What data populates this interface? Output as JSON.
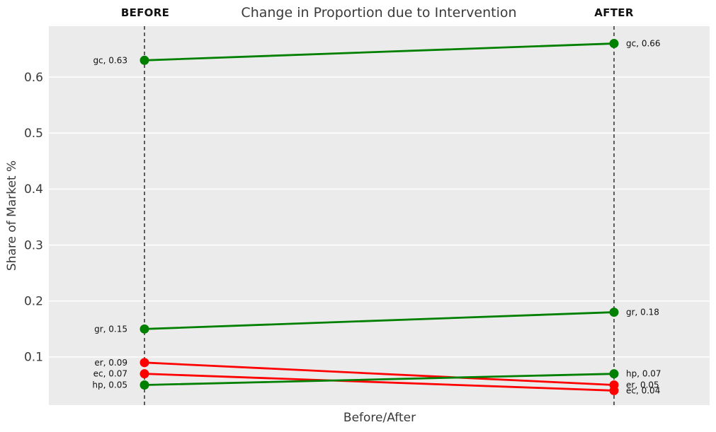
{
  "chart_data": {
    "type": "line",
    "subtype": "slope",
    "title": "Change in Proportion due to Intervention",
    "xlabel": "Before/After",
    "ylabel": "Share of Market %",
    "categories": [
      "BEFORE",
      "AFTER"
    ],
    "series": [
      {
        "name": "gc",
        "values": [
          0.63,
          0.66
        ],
        "trend": "increase",
        "color": "#008000"
      },
      {
        "name": "gr",
        "values": [
          0.15,
          0.18
        ],
        "trend": "increase",
        "color": "#008000"
      },
      {
        "name": "er",
        "values": [
          0.09,
          0.05
        ],
        "trend": "decrease",
        "color": "#ff0000"
      },
      {
        "name": "ec",
        "values": [
          0.07,
          0.04
        ],
        "trend": "decrease",
        "color": "#ff0000"
      },
      {
        "name": "hp",
        "values": [
          0.05,
          0.07
        ],
        "trend": "increase",
        "color": "#008000"
      }
    ],
    "yticks": [
      0.1,
      0.2,
      0.3,
      0.4,
      0.5,
      0.6
    ],
    "ylim": [
      0.014,
      0.691
    ],
    "grid": true,
    "legend": "none",
    "point_label_format": "name, value",
    "colors": {
      "plot_background": "#ebebeb",
      "grid_line": "#ffffff",
      "column_guide_line": "#111111",
      "increase": "#008000",
      "decrease": "#ff0000",
      "point_label_text": "#111111",
      "tick_text": "#3a3a3a",
      "title_text": "#3a3a3a"
    }
  }
}
